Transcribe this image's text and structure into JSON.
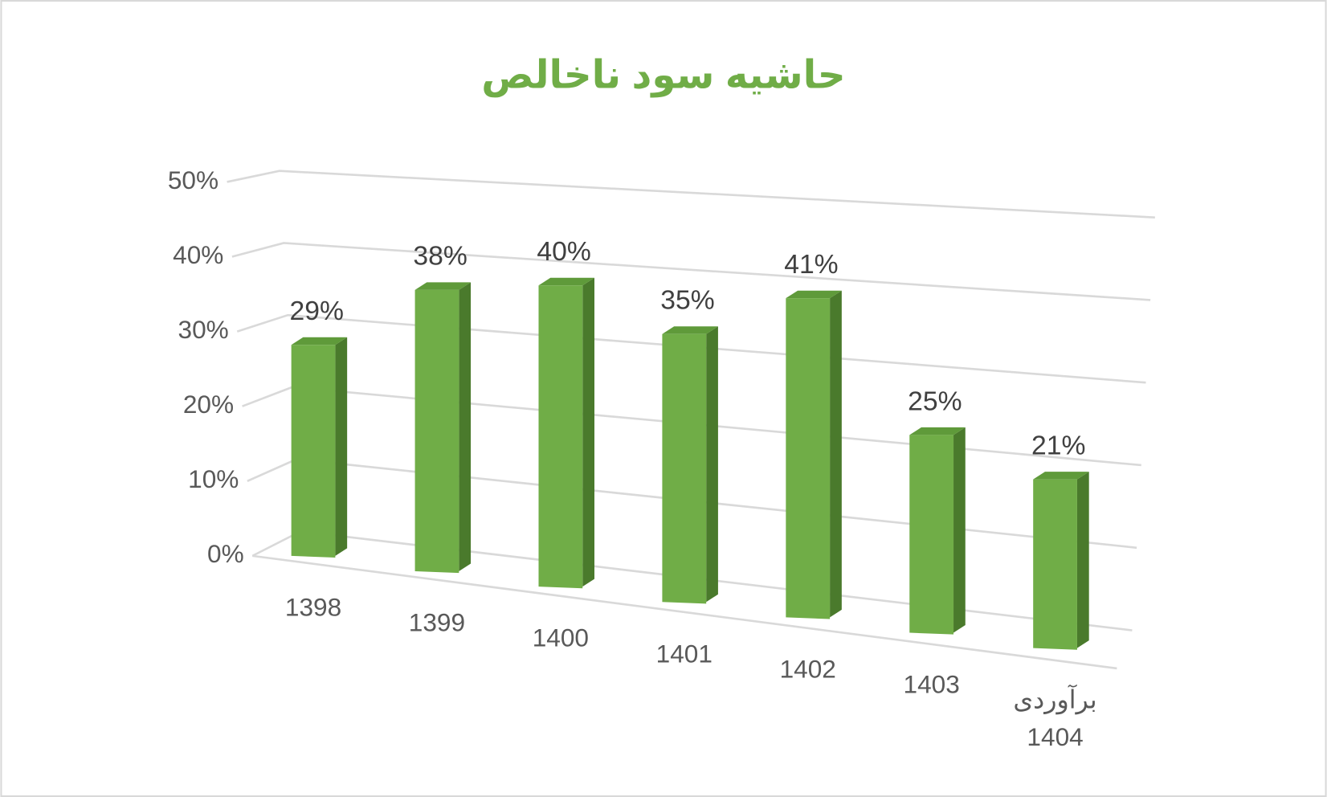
{
  "chart_data": {
    "type": "bar3d",
    "title": "حاشیه سود ناخالص",
    "categories": [
      "1398",
      "1399",
      "1400",
      "1401",
      "1402",
      "1403",
      "برآوردی\n1404"
    ],
    "values": [
      29,
      38,
      40,
      35,
      41,
      25,
      21
    ],
    "value_labels": [
      "29%",
      "38%",
      "40%",
      "35%",
      "41%",
      "25%",
      "21%"
    ],
    "color": "#70ad47",
    "ylim": [
      0,
      50
    ],
    "yticks": [
      {
        "value": 0,
        "label": "0%"
      },
      {
        "value": 10,
        "label": "10%"
      },
      {
        "value": 20,
        "label": "20%"
      },
      {
        "value": 30,
        "label": "30%"
      },
      {
        "value": 40,
        "label": "40%"
      },
      {
        "value": 50,
        "label": "50%"
      }
    ],
    "grid": true
  }
}
